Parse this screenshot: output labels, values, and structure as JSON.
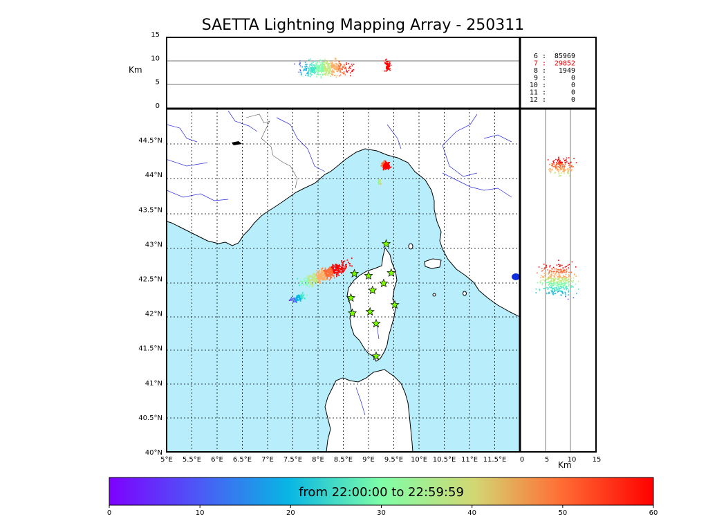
{
  "title": "SAETTA Lightning Mapping Array - 250311",
  "colors": {
    "sea": "#b8eefb",
    "land": "#ffffff",
    "coast": "#000000",
    "rivers": "#2b2bdc",
    "borders": "#555555",
    "stations": "#7cfc00"
  },
  "altitude_panel": {
    "unit": "Km",
    "ticks": [
      "0",
      "5",
      "10",
      "15"
    ]
  },
  "station_counts": [
    {
      "label": "6  :",
      "value": "85969",
      "highlight": false
    },
    {
      "label": "7  :",
      "value": "29852",
      "highlight": true
    },
    {
      "label": "8  :",
      "value": "1949",
      "highlight": false
    },
    {
      "label": "9  :",
      "value": "0",
      "highlight": false
    },
    {
      "label": "10  :",
      "value": "0",
      "highlight": false
    },
    {
      "label": "11  :",
      "value": "0",
      "highlight": false
    },
    {
      "label": "12  :",
      "value": "0",
      "highlight": false
    }
  ],
  "map": {
    "lon_ticks": [
      "5°E",
      "5.5°E",
      "6°E",
      "6.5°E",
      "7°E",
      "7.5°E",
      "8°E",
      "8.5°E",
      "9°E",
      "9.5°E",
      "10°E",
      "10.5°E",
      "11°E",
      "11.5°E"
    ],
    "lat_ticks": [
      "40°N",
      "40.5°N",
      "41°N",
      "41.5°N",
      "42°N",
      "42.5°N",
      "43°N",
      "43.5°N",
      "44°N",
      "44.5°N"
    ],
    "lon_range": [
      5,
      12
    ],
    "lat_range": [
      40,
      44.95
    ],
    "stations": [
      {
        "lon": 9.35,
        "lat": 43.0
      },
      {
        "lon": 8.72,
        "lat": 42.57
      },
      {
        "lon": 9.0,
        "lat": 42.54
      },
      {
        "lon": 9.45,
        "lat": 42.58
      },
      {
        "lon": 9.3,
        "lat": 42.43
      },
      {
        "lon": 9.08,
        "lat": 42.33
      },
      {
        "lon": 8.65,
        "lat": 42.22
      },
      {
        "lon": 9.52,
        "lat": 42.12
      },
      {
        "lon": 8.68,
        "lat": 42.0
      },
      {
        "lon": 9.03,
        "lat": 42.02
      },
      {
        "lon": 9.15,
        "lat": 41.85
      },
      {
        "lon": 9.15,
        "lat": 41.38
      }
    ]
  },
  "side_panel": {
    "unit": "Km",
    "ticks": [
      "0",
      "5",
      "10",
      "15"
    ]
  },
  "colorbar": {
    "label": "from 22:00:00 to 22:59:59",
    "ticks": [
      "0",
      "10",
      "20",
      "30",
      "40",
      "50",
      "60"
    ]
  }
}
